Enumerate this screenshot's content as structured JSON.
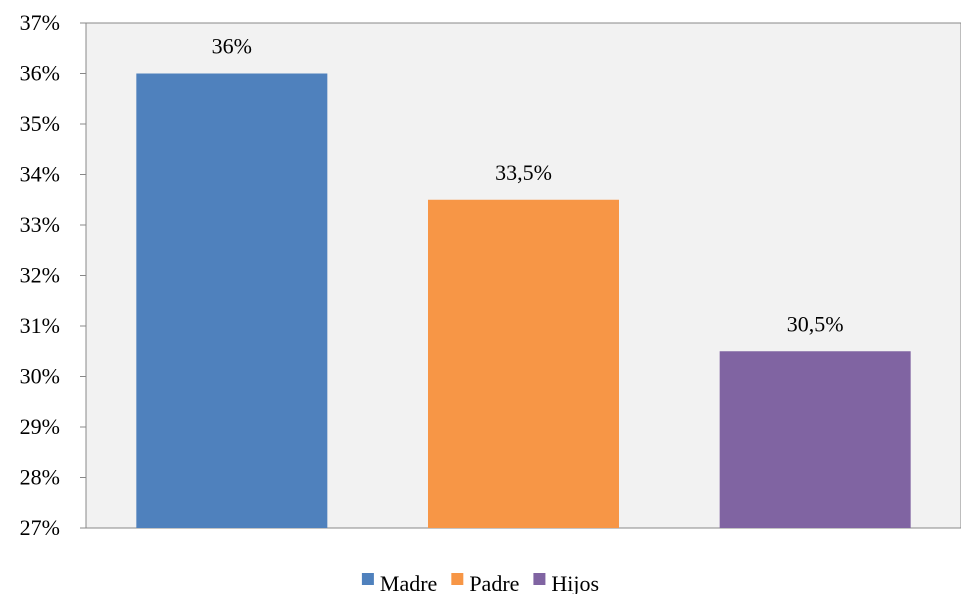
{
  "chart_data": {
    "type": "bar",
    "categories": [
      "Madre",
      "Padre",
      "Hijos"
    ],
    "values": [
      36,
      33.5,
      30.5
    ],
    "data_labels": [
      "36%",
      "33,5%",
      "30,5%"
    ],
    "colors": [
      "#4f81bd",
      "#f79646",
      "#8064a2"
    ],
    "ylim": [
      27,
      37
    ],
    "yticks": [
      27,
      28,
      29,
      30,
      31,
      32,
      33,
      34,
      35,
      36,
      37
    ],
    "ytick_labels": [
      "27%",
      "28%",
      "29%",
      "30%",
      "31%",
      "32%",
      "33%",
      "34%",
      "35%",
      "36%",
      "37%"
    ],
    "plot_background": "#f2f2f2",
    "grid": false,
    "legend": {
      "position": "bottom",
      "entries": [
        "Madre",
        "Padre",
        "Hijos"
      ]
    }
  }
}
